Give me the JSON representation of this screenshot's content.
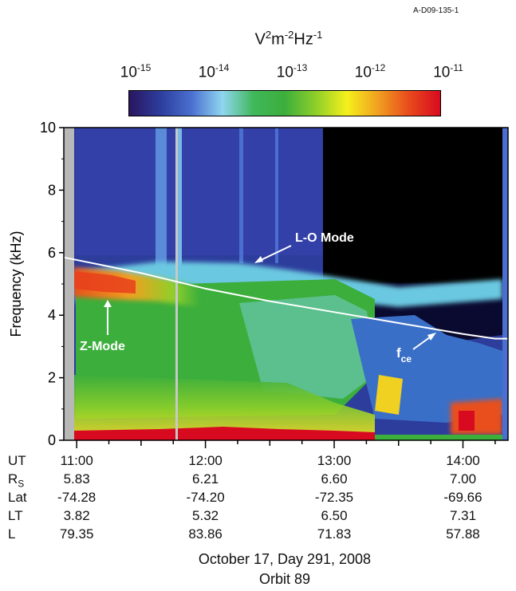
{
  "figure_id": "A-D09-135-1",
  "colorbar": {
    "unit_base": "V",
    "unit_e1": "2",
    "unit_m": "m",
    "unit_e2": "-2",
    "unit_hz": "Hz",
    "unit_e3": "-1",
    "ticks": [
      {
        "base": "10",
        "exp": "-15"
      },
      {
        "base": "10",
        "exp": "-14"
      },
      {
        "base": "10",
        "exp": "-13"
      },
      {
        "base": "10",
        "exp": "-12"
      },
      {
        "base": "10",
        "exp": "-11"
      }
    ],
    "colors": [
      "#2a1560",
      "#2c3d9c",
      "#4a6fd0",
      "#8fd6f0",
      "#40b85a",
      "#3cae3c",
      "#8ecf2a",
      "#f5f01c",
      "#f0a020",
      "#e84a1c",
      "#d80a20"
    ]
  },
  "chart_data": {
    "type": "heatmap",
    "title": "",
    "ylabel": "Frequency (kHz)",
    "ylim": [
      0,
      10
    ],
    "y_ticks": [
      "0",
      "2",
      "4",
      "6",
      "8",
      "10"
    ],
    "x_ticks": [
      "11:00",
      "12:00",
      "13:00",
      "14:00"
    ],
    "colorbar_range_log10": [
      -15,
      -11
    ],
    "fce_curve": {
      "ut_hours": [
        11.0,
        11.5,
        12.0,
        12.5,
        13.0,
        13.5,
        14.0,
        14.25
      ],
      "freq_khz": [
        5.85,
        5.35,
        4.85,
        4.45,
        4.1,
        3.75,
        3.4,
        3.25
      ]
    },
    "annotations": [
      {
        "text": "L-O Mode"
      },
      {
        "text": "Z-Mode"
      },
      {
        "text": "f",
        "sub": "ce"
      }
    ]
  },
  "table": {
    "rows": [
      {
        "label": "UT",
        "values": [
          "11:00",
          "12:00",
          "13:00",
          "14:00"
        ]
      },
      {
        "label": "R",
        "sub": "S",
        "values": [
          "5.83",
          "6.21",
          "6.60",
          "7.00"
        ]
      },
      {
        "label": "Lat",
        "values": [
          "-74.28",
          "-74.20",
          "-72.35",
          "-69.66"
        ]
      },
      {
        "label": "LT",
        "values": [
          "3.82",
          "5.32",
          "6.50",
          "7.31"
        ]
      },
      {
        "label": "L",
        "values": [
          "79.35",
          "83.86",
          "71.83",
          "57.88"
        ]
      }
    ]
  },
  "footer": {
    "date": "October 17, Day 291, 2008",
    "orbit": "Orbit 89"
  }
}
